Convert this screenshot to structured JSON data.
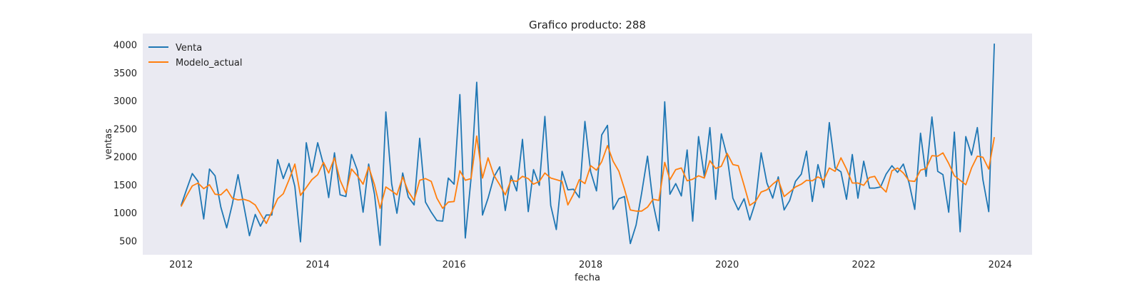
{
  "chart_data": {
    "type": "line",
    "title": "Grafico producto: 288",
    "xlabel": "fecha",
    "ylabel": "ventas",
    "x_range": [
      "2011-06-10",
      "2024-06-20"
    ],
    "xticks": [
      "2012",
      "2014",
      "2016",
      "2018",
      "2020",
      "2022",
      "2024"
    ],
    "ylim": [
      250,
      4200
    ],
    "yticks": [
      500,
      1000,
      1500,
      2000,
      2500,
      3000,
      3500,
      4000
    ],
    "grid": false,
    "legend_position": "upper-left",
    "background": "#eaeaf2",
    "x": [
      "2012-01",
      "2012-02",
      "2012-03",
      "2012-04",
      "2012-05",
      "2012-06",
      "2012-07",
      "2012-08",
      "2012-09",
      "2012-10",
      "2012-11",
      "2012-12",
      "2013-01",
      "2013-02",
      "2013-03",
      "2013-04",
      "2013-05",
      "2013-06",
      "2013-07",
      "2013-08",
      "2013-09",
      "2013-10",
      "2013-11",
      "2013-12",
      "2014-01",
      "2014-02",
      "2014-03",
      "2014-04",
      "2014-05",
      "2014-06",
      "2014-07",
      "2014-08",
      "2014-09",
      "2014-10",
      "2014-11",
      "2014-12",
      "2015-01",
      "2015-02",
      "2015-03",
      "2015-04",
      "2015-05",
      "2015-06",
      "2015-07",
      "2015-08",
      "2015-09",
      "2015-10",
      "2015-11",
      "2015-12",
      "2016-01",
      "2016-02",
      "2016-03",
      "2016-04",
      "2016-05",
      "2016-06",
      "2016-07",
      "2016-08",
      "2016-09",
      "2016-10",
      "2016-11",
      "2016-12",
      "2017-01",
      "2017-02",
      "2017-03",
      "2017-04",
      "2017-05",
      "2017-06",
      "2017-07",
      "2017-08",
      "2017-09",
      "2017-10",
      "2017-11",
      "2017-12",
      "2018-01",
      "2018-02",
      "2018-03",
      "2018-04",
      "2018-05",
      "2018-06",
      "2018-07",
      "2018-08",
      "2018-09",
      "2018-10",
      "2018-11",
      "2018-12",
      "2019-01",
      "2019-02",
      "2019-03",
      "2019-04",
      "2019-05",
      "2019-06",
      "2019-07",
      "2019-08",
      "2019-09",
      "2019-10",
      "2019-11",
      "2019-12",
      "2020-01",
      "2020-02",
      "2020-03",
      "2020-04",
      "2020-05",
      "2020-06",
      "2020-07",
      "2020-08",
      "2020-09",
      "2020-10",
      "2020-11",
      "2020-12",
      "2021-01",
      "2021-02",
      "2021-03",
      "2021-04",
      "2021-05",
      "2021-06",
      "2021-07",
      "2021-08",
      "2021-09",
      "2021-10",
      "2021-11",
      "2021-12",
      "2022-01",
      "2022-02",
      "2022-03",
      "2022-04",
      "2022-05",
      "2022-06",
      "2022-07",
      "2022-08",
      "2022-09",
      "2022-10",
      "2022-11",
      "2022-12",
      "2023-01",
      "2023-02",
      "2023-03",
      "2023-04",
      "2023-05",
      "2023-06",
      "2023-07",
      "2023-08",
      "2023-09",
      "2023-10",
      "2023-11",
      "2023-12"
    ],
    "series": [
      {
        "name": "Venta",
        "color": "#1f77b4",
        "values": [
          1130,
          1430,
          1700,
          1560,
          890,
          1780,
          1660,
          1100,
          730,
          1150,
          1680,
          1140,
          590,
          970,
          760,
          960,
          960,
          1950,
          1610,
          1880,
          1470,
          480,
          2250,
          1720,
          2250,
          1860,
          1270,
          2070,
          1320,
          1290,
          2040,
          1760,
          1010,
          1870,
          1330,
          420,
          2800,
          1520,
          990,
          1710,
          1280,
          1140,
          2330,
          1190,
          1010,
          860,
          850,
          1620,
          1510,
          3110,
          550,
          1620,
          3330,
          960,
          1260,
          1640,
          1820,
          1040,
          1660,
          1390,
          2310,
          1020,
          1770,
          1490,
          2720,
          1130,
          700,
          1740,
          1410,
          1420,
          1270,
          2630,
          1730,
          1390,
          2390,
          2560,
          1060,
          1250,
          1290,
          450,
          780,
          1360,
          2010,
          1170,
          680,
          2980,
          1330,
          1520,
          1300,
          2120,
          850,
          2360,
          1650,
          2520,
          1240,
          2410,
          2010,
          1260,
          1050,
          1250,
          870,
          1190,
          2070,
          1530,
          1260,
          1640,
          1050,
          1220,
          1560,
          1690,
          2100,
          1200,
          1860,
          1450,
          2610,
          1800,
          1730,
          1240,
          2040,
          1260,
          1920,
          1440,
          1440,
          1460,
          1690,
          1840,
          1720,
          1870,
          1530,
          1060,
          2420,
          1650,
          2710,
          1740,
          1680,
          1010,
          2440,
          660,
          2360,
          2030,
          2520,
          1590,
          1020,
          4020
        ]
      },
      {
        "name": "Modelo_actual",
        "color": "#ff7f0e",
        "values": [
          1110,
          1310,
          1480,
          1530,
          1430,
          1500,
          1330,
          1320,
          1420,
          1260,
          1230,
          1240,
          1210,
          1140,
          980,
          810,
          1020,
          1250,
          1340,
          1590,
          1870,
          1310,
          1450,
          1590,
          1680,
          1900,
          1710,
          1980,
          1580,
          1350,
          1780,
          1660,
          1510,
          1820,
          1500,
          1080,
          1460,
          1390,
          1320,
          1640,
          1380,
          1220,
          1580,
          1610,
          1560,
          1260,
          1080,
          1190,
          1200,
          1750,
          1580,
          1610,
          2370,
          1620,
          1980,
          1670,
          1500,
          1320,
          1580,
          1560,
          1650,
          1610,
          1510,
          1560,
          1710,
          1620,
          1590,
          1560,
          1140,
          1330,
          1590,
          1520,
          1840,
          1760,
          1910,
          2200,
          1920,
          1740,
          1420,
          1050,
          1030,
          1030,
          1100,
          1240,
          1220,
          1900,
          1590,
          1770,
          1800,
          1570,
          1600,
          1660,
          1620,
          1930,
          1790,
          1830,
          2060,
          1860,
          1840,
          1490,
          1130,
          1200,
          1370,
          1410,
          1510,
          1590,
          1290,
          1370,
          1460,
          1510,
          1580,
          1570,
          1640,
          1580,
          1800,
          1740,
          1980,
          1780,
          1530,
          1530,
          1490,
          1630,
          1650,
          1470,
          1370,
          1750,
          1800,
          1710,
          1570,
          1560,
          1760,
          1790,
          2020,
          2010,
          2070,
          1880,
          1660,
          1580,
          1500,
          1800,
          2010,
          1990,
          1780,
          2350
        ]
      }
    ]
  }
}
